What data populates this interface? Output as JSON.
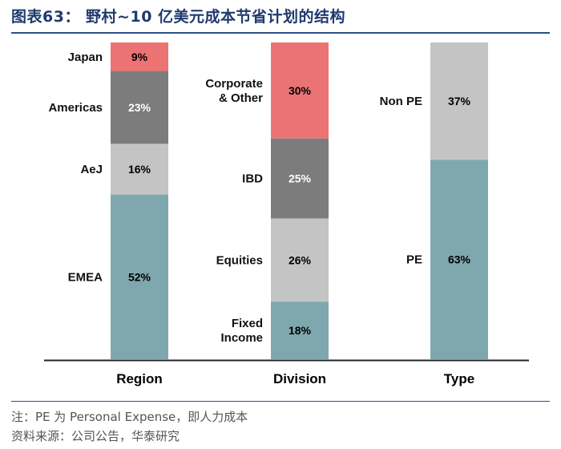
{
  "title": "图表63： 野村~10 亿美元成本节省计划的结构",
  "chart_data": {
    "type": "bar",
    "stacked": true,
    "percent": true,
    "categories": [
      "Region",
      "Division",
      "Type"
    ],
    "stacks": [
      {
        "category": "Region",
        "segments": [
          {
            "name": "EMEA",
            "value": 52,
            "label": "52%",
            "color": "#7fa8ae",
            "label_color": "#000000"
          },
          {
            "name": "AeJ",
            "value": 16,
            "label": "16%",
            "color": "#c4c4c4",
            "label_color": "#000000"
          },
          {
            "name": "Americas",
            "value": 23,
            "label": "23%",
            "color": "#7c7c7c",
            "label_color": "#ffffff"
          },
          {
            "name": "Japan",
            "value": 9,
            "label": "9%",
            "color": "#ec7373",
            "label_color": "#000000"
          }
        ]
      },
      {
        "category": "Division",
        "segments": [
          {
            "name": "Fixed Income",
            "name_lines": [
              "Fixed",
              "Income"
            ],
            "value": 18,
            "label": "18%",
            "color": "#7fa8ae",
            "label_color": "#000000"
          },
          {
            "name": "Equities",
            "value": 26,
            "label": "26%",
            "color": "#c4c4c4",
            "label_color": "#000000"
          },
          {
            "name": "IBD",
            "value": 25,
            "label": "25%",
            "color": "#7c7c7c",
            "label_color": "#ffffff"
          },
          {
            "name": "Corporate & Other",
            "name_lines": [
              "Corporate",
              "& Other"
            ],
            "value": 30,
            "label": "30%",
            "color": "#ec7373",
            "label_color": "#000000"
          }
        ]
      },
      {
        "category": "Type",
        "segments": [
          {
            "name": "PE",
            "value": 63,
            "label": "63%",
            "color": "#7fa8ae",
            "label_color": "#000000"
          },
          {
            "name": "Non PE",
            "value": 37,
            "label": "37%",
            "color": "#c4c4c4",
            "label_color": "#000000"
          }
        ]
      }
    ],
    "ylim": [
      0,
      100
    ]
  },
  "notes": {
    "line1": "注：PE 为 Personal Expense，即人力成本",
    "line2": "资料来源：公司公告，华泰研究"
  }
}
